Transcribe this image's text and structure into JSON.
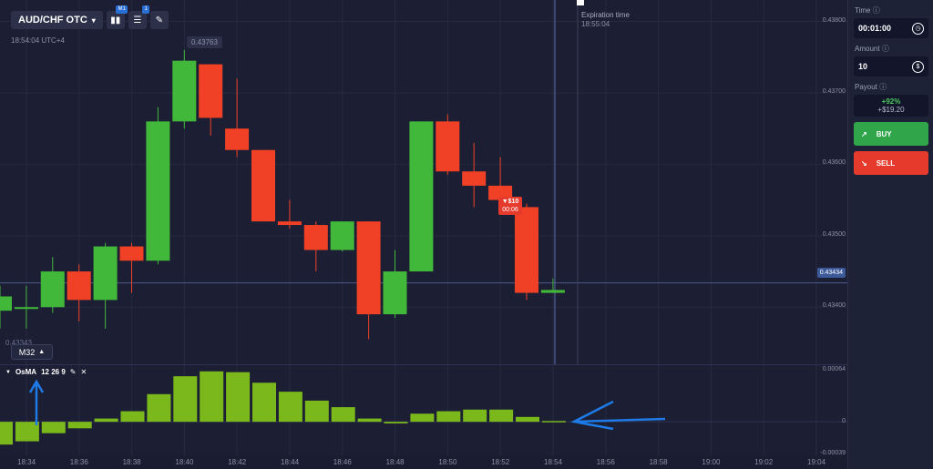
{
  "toolbar": {
    "pair": "AUD/CHF OTC",
    "badge_timeframe": "M1",
    "badge_indicators": "1"
  },
  "header": {
    "clock": "18:54:04 UTC+4",
    "expiration_label": "Expiration time",
    "expiration_time": "18:55:04",
    "high_label": "0.43763"
  },
  "price_axis": {
    "ticks": [
      "0.43800",
      "0.43700",
      "0.43600",
      "0.43500",
      "0.43400"
    ],
    "current": "0.43434"
  },
  "osma_axis": {
    "ticks": [
      "0.00064",
      "0",
      "-0.00039"
    ]
  },
  "time_axis": {
    "ticks": [
      "18:34",
      "18:36",
      "18:38",
      "18:40",
      "18:42",
      "18:44",
      "18:46",
      "18:48",
      "18:50",
      "18:52",
      "18:54",
      "18:56",
      "18:58",
      "19:00",
      "19:02",
      "19:04"
    ]
  },
  "timeframe": "M32",
  "partial_price": "0.43343",
  "indicator": {
    "name": "OsMA",
    "params": "12 26 9"
  },
  "trade_marker": {
    "amount": "▼$10",
    "time": "00:06"
  },
  "panel": {
    "time_label": "Time",
    "time_value": "00:01:00",
    "amount_label": "Amount",
    "amount_value": "10",
    "payout_label": "Payout",
    "payout_percent": "+92%",
    "payout_amount": "+$19.20",
    "buy_label": "BUY",
    "sell_label": "SELL"
  },
  "chart_data": [
    {
      "type": "candlestick",
      "title": "AUD/CHF OTC",
      "ylim": [
        0.4332,
        0.4383
      ],
      "candles": [
        {
          "o": 0.43395,
          "c": 0.43415,
          "h": 0.4343,
          "l": 0.4337
        },
        {
          "o": 0.434,
          "c": 0.434,
          "h": 0.4343,
          "l": 0.4337
        },
        {
          "o": 0.434,
          "c": 0.4345,
          "h": 0.4347,
          "l": 0.43392
        },
        {
          "o": 0.4345,
          "c": 0.4341,
          "h": 0.4346,
          "l": 0.4338
        },
        {
          "o": 0.4341,
          "c": 0.43485,
          "h": 0.4349,
          "l": 0.4337
        },
        {
          "o": 0.43485,
          "c": 0.43465,
          "h": 0.4349,
          "l": 0.4342
        },
        {
          "o": 0.43465,
          "c": 0.4366,
          "h": 0.4368,
          "l": 0.4346
        },
        {
          "o": 0.4366,
          "c": 0.43745,
          "h": 0.4376,
          "l": 0.4365
        },
        {
          "o": 0.4374,
          "c": 0.43665,
          "h": 0.4374,
          "l": 0.4364
        },
        {
          "o": 0.4365,
          "c": 0.4362,
          "h": 0.4372,
          "l": 0.4361
        },
        {
          "o": 0.4362,
          "c": 0.4352,
          "h": 0.4362,
          "l": 0.4352
        },
        {
          "o": 0.4352,
          "c": 0.43515,
          "h": 0.4355,
          "l": 0.4351
        },
        {
          "o": 0.43515,
          "c": 0.4348,
          "h": 0.4352,
          "l": 0.4345
        },
        {
          "o": 0.4348,
          "c": 0.4352,
          "h": 0.4352,
          "l": 0.43478
        },
        {
          "o": 0.4352,
          "c": 0.4339,
          "h": 0.4352,
          "l": 0.43355
        },
        {
          "o": 0.4339,
          "c": 0.4345,
          "h": 0.4348,
          "l": 0.43385
        },
        {
          "o": 0.4345,
          "c": 0.4366,
          "h": 0.4366,
          "l": 0.4345
        },
        {
          "o": 0.4366,
          "c": 0.4359,
          "h": 0.4367,
          "l": 0.43585
        },
        {
          "o": 0.4359,
          "c": 0.4357,
          "h": 0.4363,
          "l": 0.4354
        },
        {
          "o": 0.4357,
          "c": 0.4355,
          "h": 0.4361,
          "l": 0.4354
        },
        {
          "o": 0.4354,
          "c": 0.4342,
          "h": 0.43545,
          "l": 0.4341
        },
        {
          "o": 0.4342,
          "c": 0.43424,
          "h": 0.4344,
          "l": 0.4342
        }
      ]
    },
    {
      "type": "bar",
      "title": "OsMA 12 26 9",
      "ylim": [
        -0.00039,
        0.00064
      ],
      "values": [
        -0.00028,
        -0.00024,
        -0.00014,
        -8e-05,
        4e-05,
        0.00013,
        0.00034,
        0.00056,
        0.00062,
        0.00061,
        0.00048,
        0.00037,
        0.00026,
        0.00018,
        4e-05,
        -2e-05,
        0.0001,
        0.00013,
        0.00015,
        0.00015,
        6e-05,
        1e-05
      ]
    }
  ]
}
